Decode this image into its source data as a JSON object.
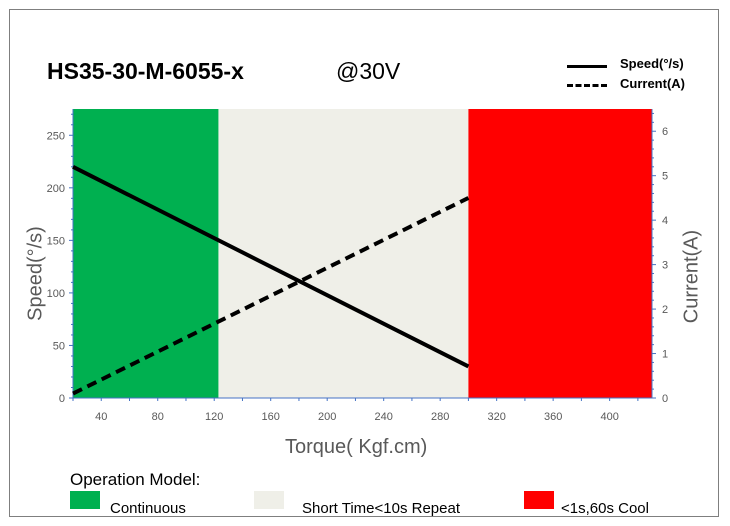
{
  "chart_data": {
    "type": "line",
    "title": "HS35-30-M-6055-x",
    "subtitle": "@30V",
    "xlabel": "Torque( Kgf.cm)",
    "ylabel": "Speed(°/s)",
    "y2label": "Current(A)",
    "xlim": [
      20,
      430
    ],
    "ylim": [
      0,
      275
    ],
    "y2lim": [
      0,
      6.5
    ],
    "x_ticks": [
      40,
      80,
      120,
      160,
      200,
      240,
      280,
      320,
      360,
      400
    ],
    "y_ticks": [
      0,
      50,
      100,
      150,
      200,
      250
    ],
    "y2_ticks": [
      0,
      1,
      2,
      3,
      4,
      5,
      6
    ],
    "grid": false,
    "legend_position": "top-right",
    "series": [
      {
        "name": "Speed(°/s)",
        "axis": "left",
        "style": "solid",
        "x": [
          20,
          300
        ],
        "y": [
          220,
          30
        ]
      },
      {
        "name": "Current(A)",
        "axis": "right",
        "style": "dashed",
        "x": [
          20,
          300
        ],
        "y": [
          0.1,
          4.5
        ]
      }
    ],
    "regions": [
      {
        "name": "Continuous",
        "x": [
          20,
          123
        ],
        "color": "#00b050"
      },
      {
        "name": "Short Time<10s Repeat",
        "x": [
          123,
          300
        ],
        "color": "#efefe8"
      },
      {
        "name": "<1s,60s Cool",
        "x": [
          300,
          430
        ],
        "color": "#ff0000"
      }
    ],
    "operation_title": "Operation Model:"
  }
}
